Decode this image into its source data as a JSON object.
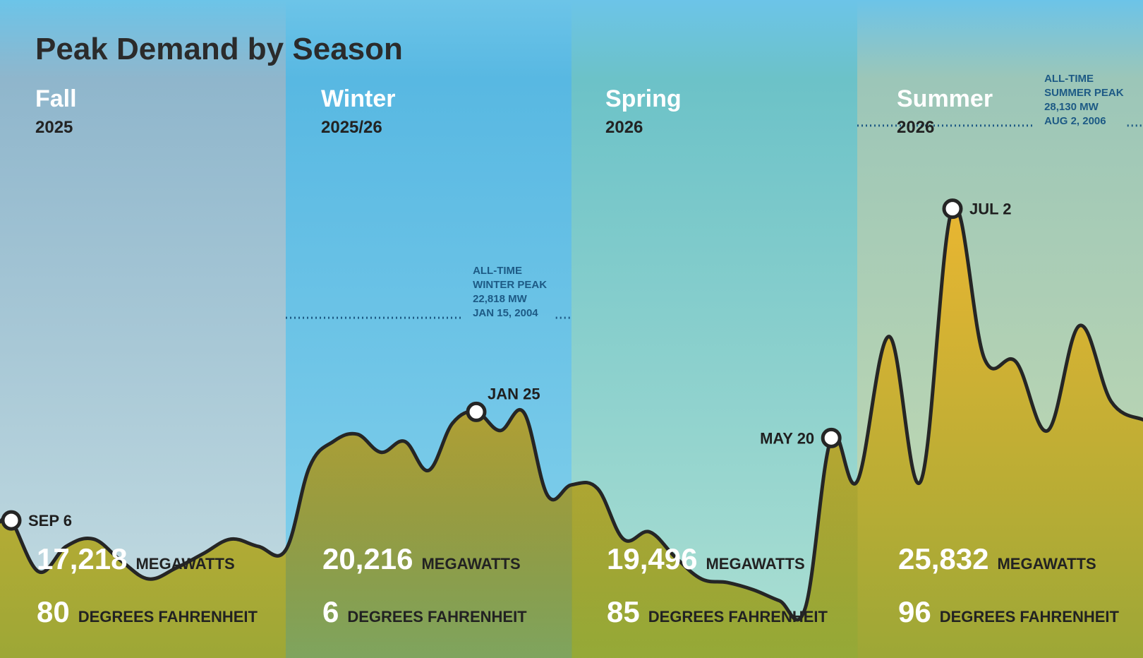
{
  "title": "Peak Demand by Season",
  "colors": {
    "fill_top": "#e9b632",
    "fill_bottom": "#9da736",
    "line": "#252525",
    "record_line": "#1d5a85",
    "sky": "#6cc4e8"
  },
  "chart_data": {
    "type": "area",
    "ylabel": "",
    "xlabel": "",
    "ylim": [
      14000,
      30000
    ],
    "seasons": [
      {
        "name": "Fall",
        "year": "2025",
        "peak_label": "SEP 6",
        "peak_mw": "17,218",
        "peak_mw_unit": "MEGAWATTS",
        "temp": "80",
        "temp_unit": "DEGREES FAHRENHEIT",
        "values": [
          17218,
          15800,
          16500,
          16700,
          16100,
          15600,
          15900,
          16300,
          16700,
          16500,
          16400
        ],
        "peak_index": 0,
        "top_color": "#8fb6cc",
        "bottom_color": "#c5dde2"
      },
      {
        "name": "Winter",
        "year": "2025/26",
        "peak_label": "JAN 25",
        "peak_mw": "20,216",
        "peak_mw_unit": "MEGAWATTS",
        "temp": "6",
        "temp_unit": "DEGREES FAHRENHEIT",
        "record": {
          "lines": [
            "ALL-TIME",
            "WINTER PEAK",
            "22,818 MW",
            "JAN 15, 2004"
          ],
          "value": 22818
        },
        "values": [
          16400,
          18700,
          19400,
          19600,
          19100,
          19400,
          18600,
          19900,
          20216,
          19700,
          20200,
          17900,
          18200
        ],
        "peak_index": 8,
        "top_color": "#58b8e2",
        "bottom_color": "#86d2ec"
      },
      {
        "name": "Spring",
        "year": "2026",
        "peak_label": "MAY 20",
        "peak_mw": "19,496",
        "peak_mw_unit": "MEGAWATTS",
        "temp": "85",
        "temp_unit": "DEGREES FAHRENHEIT",
        "values": [
          18200,
          18100,
          16700,
          16900,
          16200,
          15600,
          15500,
          15300,
          15000,
          14800,
          19496,
          18300
        ],
        "peak_index": 10,
        "top_color": "#6cc2c8",
        "bottom_color": "#acdfd2"
      },
      {
        "name": "Summer",
        "year": "2026",
        "peak_label": "JUL 2",
        "peak_mw": "25,832",
        "peak_mw_unit": "MEGAWATTS",
        "temp": "96",
        "temp_unit": "DEGREES FAHRENHEIT",
        "record": {
          "lines": [
            "ALL-TIME",
            "SUMMER PEAK",
            "28,130 MW",
            "AUG 2, 2006"
          ],
          "value": 28130
        },
        "values": [
          18300,
          22300,
          18300,
          25832,
          21700,
          21600,
          19700,
          22600,
          20500,
          20000
        ],
        "peak_index": 3,
        "top_color": "#9cc6b8",
        "bottom_color": "#c8dcb0"
      }
    ]
  }
}
